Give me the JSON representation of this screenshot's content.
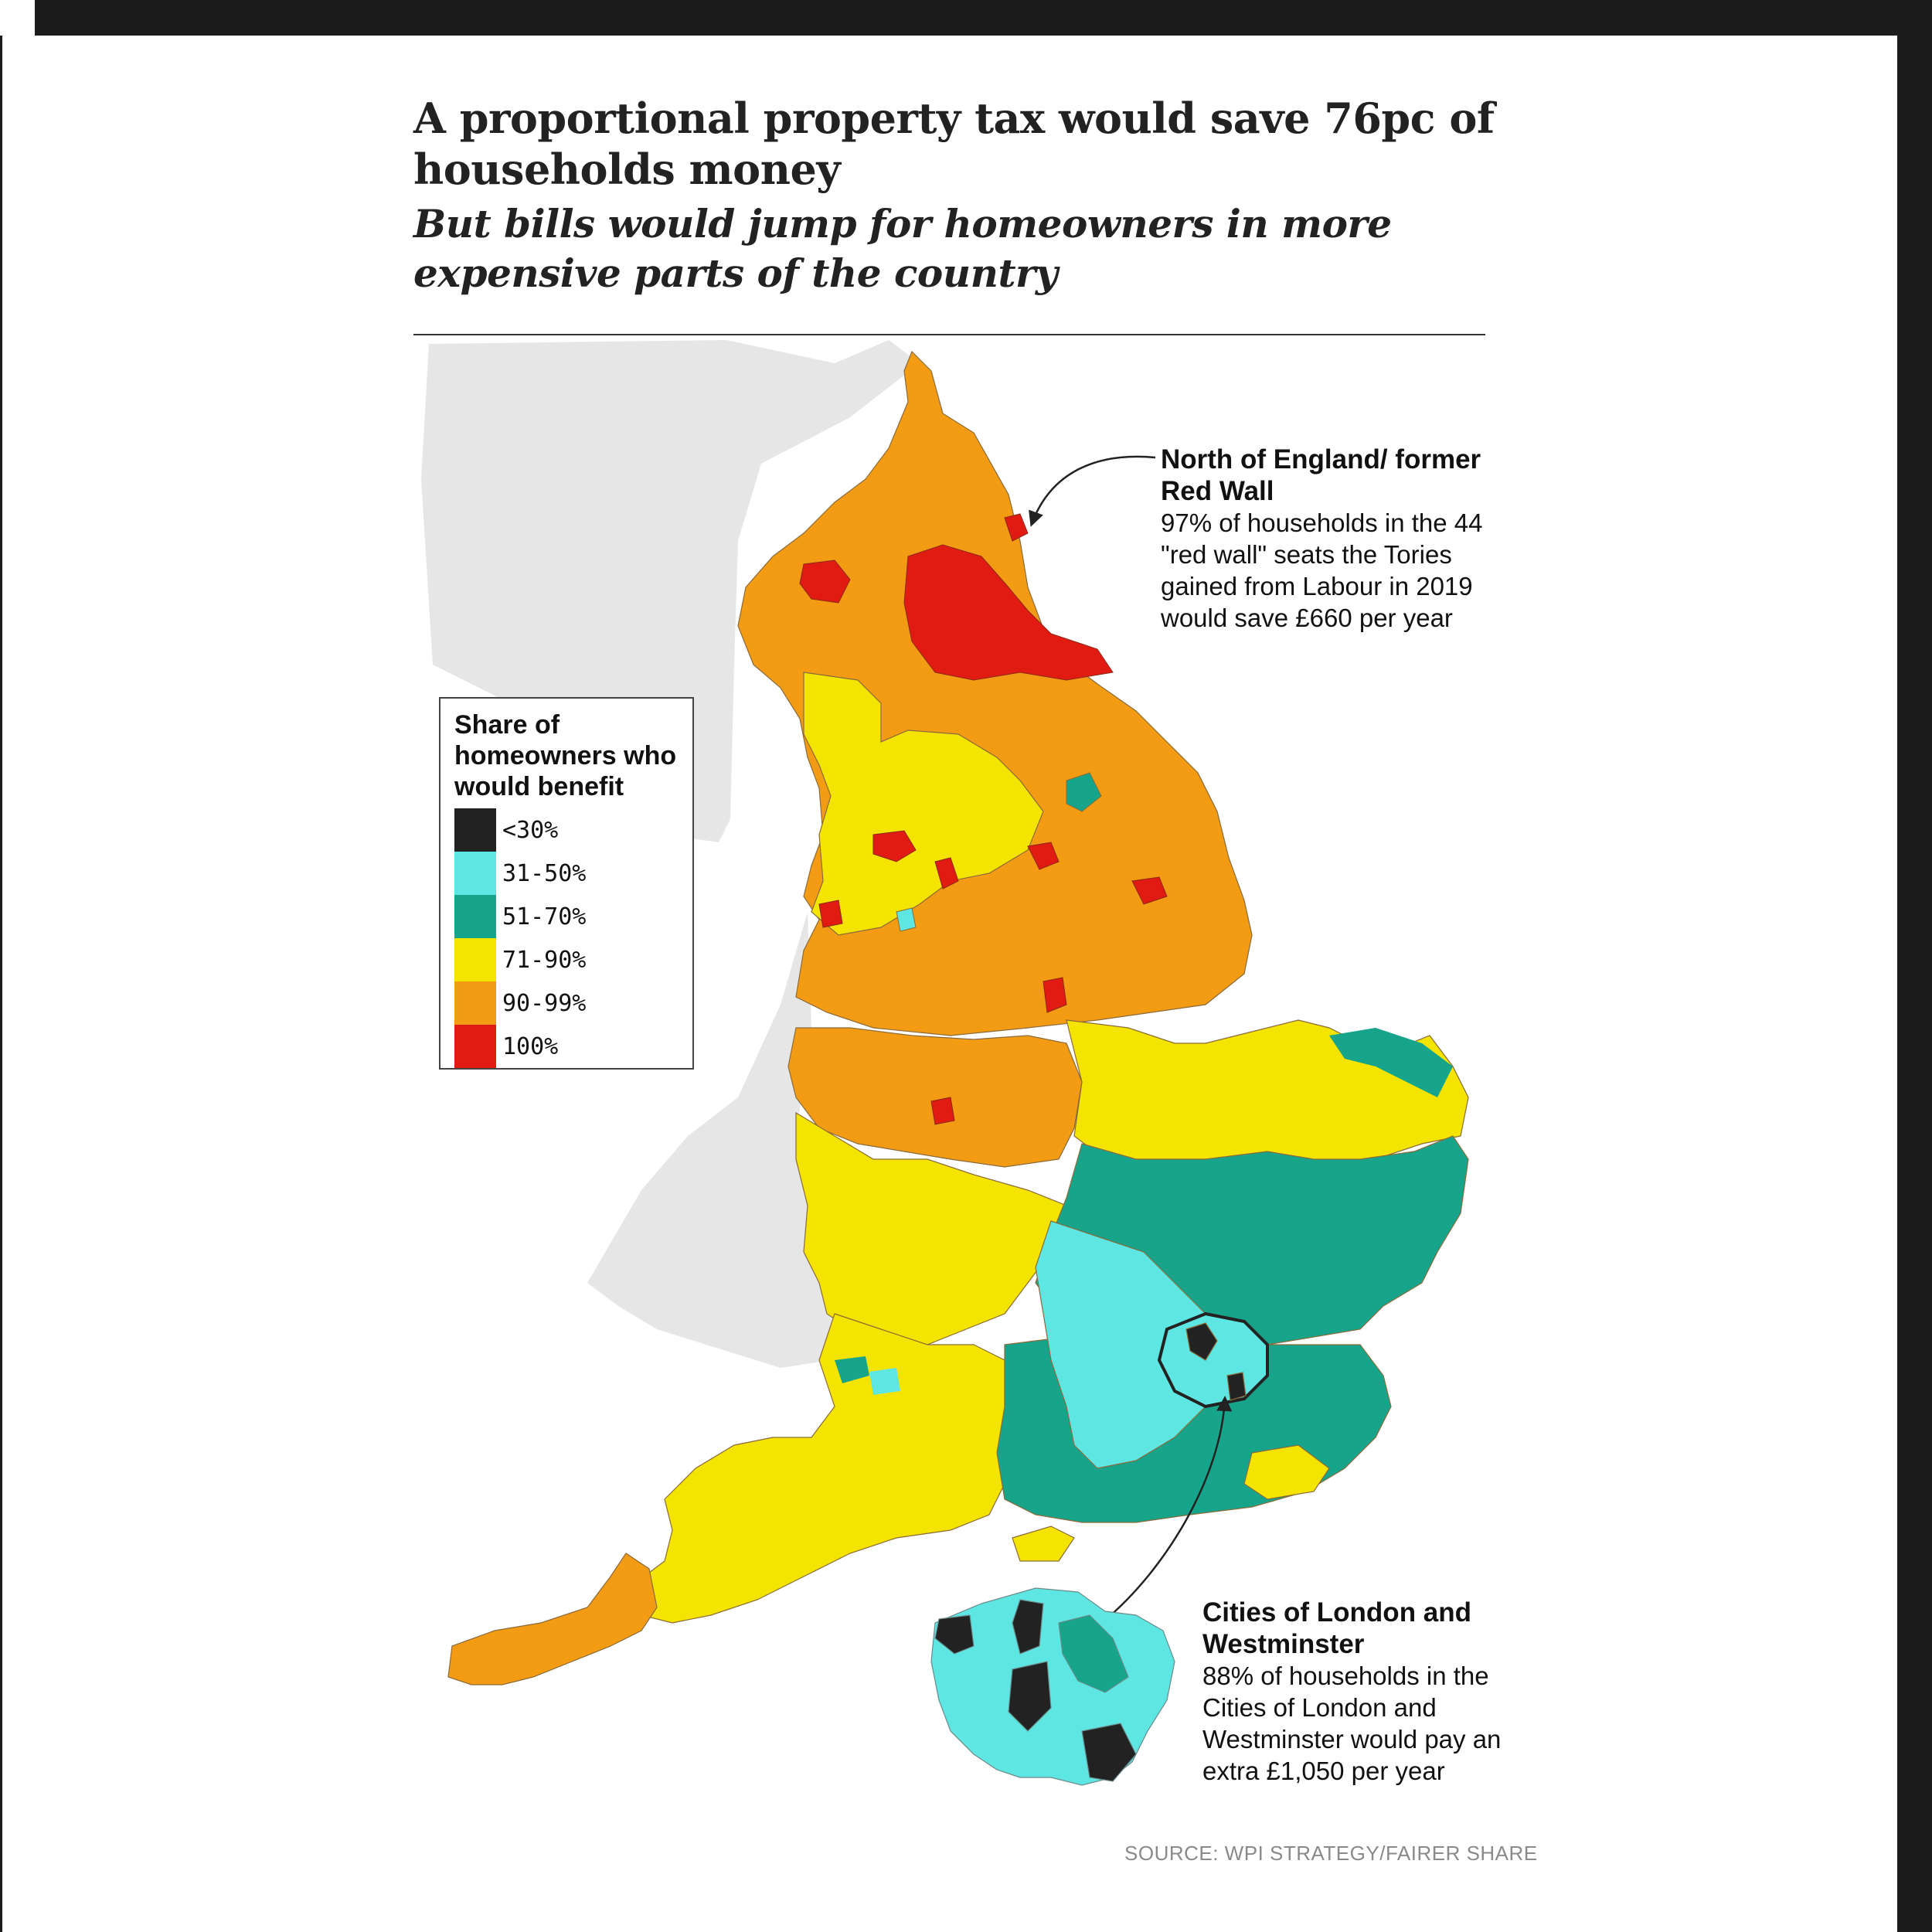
{
  "title": "A proportional property tax would save 76pc of households money",
  "subtitle": "But bills would jump for homeowners in more expensive parts of the country",
  "legend": {
    "title": "Share of homeowners who would benefit",
    "items": [
      {
        "label": "<30%",
        "color": "#222222"
      },
      {
        "label": "31-50%",
        "color": "#5ee6e2"
      },
      {
        "label": "51-70%",
        "color": "#16a58a"
      },
      {
        "label": "71-90%",
        "color": "#f5e400"
      },
      {
        "label": "90-99%",
        "color": "#f49b14"
      },
      {
        "label": "100%",
        "color": "#e11a12"
      }
    ]
  },
  "annotations": {
    "north": {
      "heading": "North of England/ former Red Wall",
      "body": "97% of households in the 44 \"red wall\" seats the Tories gained from Labour in 2019 would save £660 per year"
    },
    "london": {
      "heading": "Cities of London and Westminster",
      "body": "88% of households in the Cities of London and Westminster would pay an extra £1,050 per year"
    }
  },
  "source": "SOURCE: WPI STRATEGY/FAIRER SHARE"
}
